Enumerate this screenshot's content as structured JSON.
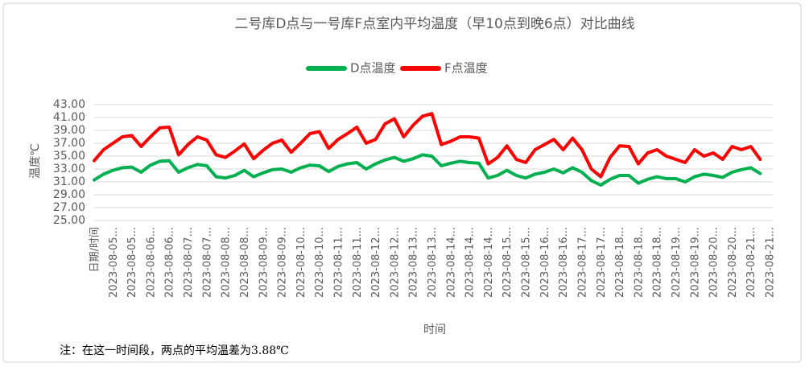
{
  "chart_data": {
    "type": "line",
    "title": "二号库D点与一号库F点室内平均温度（早10点到晚6点）对比曲线",
    "y_label": "温度℃",
    "x_label": "时间",
    "note": "注：在这一时间段，两点的平均温差为3.88℃",
    "categories": [
      "日期/时间",
      null,
      "2023-08-05...",
      null,
      "2023-08-05...",
      null,
      "2023-08-06...",
      null,
      "2023-08-06...",
      null,
      "2023-08-07...",
      null,
      "2023-08-07...",
      null,
      "2023-08-08...",
      null,
      "2023-08-08...",
      null,
      "2023-08-09...",
      null,
      "2023-08-09...",
      null,
      "2023-08-10...",
      null,
      "2023-08-10...",
      null,
      "2023-08-11...",
      null,
      "2023-08-11...",
      null,
      "2023-08-12...",
      null,
      "2023-08-12...",
      null,
      "2023-08-13...",
      null,
      "2023-08-13...",
      null,
      "2023-08-14...",
      null,
      "2023-08-14...",
      null,
      "2023-08-14...",
      null,
      "2023-08-15...",
      null,
      "2023-08-15...",
      null,
      "2023-08-16...",
      null,
      "2023-08-16...",
      null,
      "2023-08-17...",
      null,
      "2023-08-17...",
      null,
      "2023-08-18...",
      null,
      "2023-08-18...",
      null,
      "2023-08-18...",
      null,
      "2023-08-19...",
      null,
      "2023-08-19...",
      null,
      "2023-08-20...",
      null,
      "2023-08-20...",
      null,
      "2023-08-21...",
      null,
      "2023-08-21..."
    ],
    "series": [
      {
        "name": "D点温度",
        "color": "#00b050",
        "values": [
          31.3,
          32.2,
          32.8,
          33.2,
          33.3,
          32.5,
          33.6,
          34.2,
          34.3,
          32.5,
          33.2,
          33.7,
          33.5,
          31.8,
          31.6,
          32.0,
          32.8,
          31.8,
          32.4,
          32.9,
          33.0,
          32.5,
          33.2,
          33.6,
          33.5,
          32.6,
          33.4,
          33.8,
          34.0,
          33.0,
          33.8,
          34.4,
          34.8,
          34.2,
          34.6,
          35.2,
          35.0,
          33.5,
          33.9,
          34.2,
          34.0,
          33.9,
          31.6,
          32.0,
          32.8,
          32.0,
          31.6,
          32.2,
          32.5,
          33.0,
          32.4,
          33.2,
          32.5,
          31.2,
          30.5,
          31.4,
          32.0,
          32.0,
          30.8,
          31.4,
          31.8,
          31.5,
          31.5,
          31.0,
          31.8,
          32.2,
          32.0,
          31.7,
          32.5,
          32.9,
          33.2,
          32.3,
          null
        ]
      },
      {
        "name": "F点温度",
        "color": "#ff0000",
        "values": [
          34.3,
          36.0,
          37.0,
          38.0,
          38.2,
          36.5,
          38.0,
          39.4,
          39.5,
          35.2,
          36.8,
          38.0,
          37.5,
          35.2,
          34.8,
          35.8,
          36.9,
          34.6,
          35.9,
          37.0,
          37.5,
          35.6,
          37.0,
          38.5,
          38.8,
          36.2,
          37.6,
          38.5,
          39.5,
          37.0,
          37.6,
          40.0,
          40.8,
          38.0,
          39.8,
          41.2,
          41.6,
          36.8,
          37.3,
          38.0,
          38.0,
          37.8,
          33.8,
          34.8,
          36.6,
          34.5,
          34.0,
          36.0,
          36.8,
          37.6,
          36.0,
          37.8,
          36.0,
          33.0,
          31.8,
          34.8,
          36.6,
          36.5,
          33.8,
          35.5,
          36.0,
          35.0,
          34.5,
          34.0,
          36.0,
          35.0,
          35.5,
          34.5,
          36.5,
          36.0,
          36.5,
          34.5,
          null
        ]
      }
    ],
    "ylim": [
      25,
      43
    ],
    "yticks": [
      {
        "value": 25,
        "label": "25.00"
      },
      {
        "value": 27,
        "label": "27.00"
      },
      {
        "value": 29,
        "label": "29.00"
      },
      {
        "value": 31,
        "label": "31.00"
      },
      {
        "value": 33,
        "label": "33.00"
      },
      {
        "value": 35,
        "label": "35.00"
      },
      {
        "value": 37,
        "label": "37.00"
      },
      {
        "value": 39,
        "label": "39.00"
      },
      {
        "value": 41,
        "label": "41.00"
      },
      {
        "value": 43,
        "label": "43.00"
      }
    ],
    "grid": true,
    "legend": "top"
  }
}
